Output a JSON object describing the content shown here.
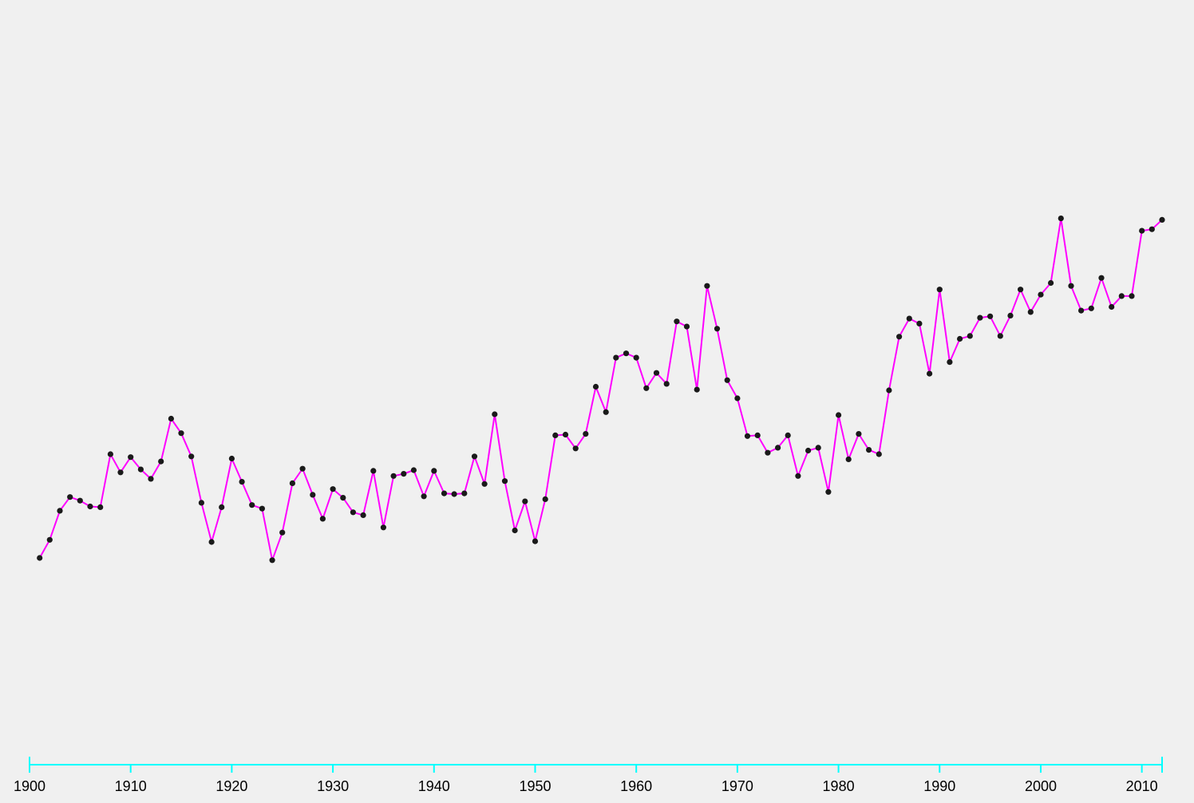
{
  "colors": {
    "background": "#f0f0f0",
    "line": "#ff00ff",
    "point": "#1a1a1a",
    "axis": "#00ffff"
  },
  "chart_data": {
    "type": "line",
    "title": "",
    "xlabel": "",
    "ylabel": "",
    "xlim": [
      1900,
      2012
    ],
    "ylim": [
      0,
      100
    ],
    "x_ticks": [
      1900,
      1910,
      1920,
      1930,
      1940,
      1950,
      1960,
      1970,
      1980,
      1990,
      2000,
      2010
    ],
    "y_axis_visible": false,
    "grid": false,
    "x": [
      1901,
      1902,
      1903,
      1904,
      1905,
      1906,
      1907,
      1908,
      1909,
      1910,
      1911,
      1912,
      1913,
      1914,
      1915,
      1916,
      1917,
      1918,
      1919,
      1920,
      1921,
      1922,
      1923,
      1924,
      1925,
      1926,
      1927,
      1928,
      1929,
      1930,
      1931,
      1932,
      1933,
      1934,
      1935,
      1936,
      1937,
      1938,
      1939,
      1940,
      1941,
      1942,
      1943,
      1944,
      1945,
      1946,
      1947,
      1948,
      1949,
      1950,
      1951,
      1952,
      1953,
      1954,
      1955,
      1956,
      1957,
      1958,
      1959,
      1960,
      1961,
      1962,
      1963,
      1964,
      1965,
      1966,
      1967,
      1968,
      1969,
      1970,
      1971,
      1972,
      1973,
      1974,
      1975,
      1976,
      1977,
      1978,
      1979,
      1980,
      1981,
      1982,
      1983,
      1984,
      1985,
      1986,
      1987,
      1988,
      1989,
      1990,
      1991,
      1992,
      1993,
      1994,
      1995,
      1996,
      1997,
      1998,
      1999,
      2000,
      2001,
      2002,
      2003,
      2004,
      2005,
      2006,
      2007,
      2008,
      2009,
      2010,
      2011,
      2012
    ],
    "series": [
      {
        "values": [
          28.6,
          31.1,
          35.1,
          37.0,
          36.5,
          35.7,
          35.6,
          42.9,
          40.4,
          42.5,
          40.8,
          39.5,
          41.9,
          47.8,
          45.8,
          42.6,
          36.2,
          30.8,
          35.6,
          42.3,
          39.1,
          35.9,
          35.4,
          28.3,
          32.1,
          38.9,
          40.9,
          37.3,
          34.0,
          38.1,
          36.9,
          34.9,
          34.5,
          40.6,
          32.8,
          39.9,
          40.2,
          40.7,
          37.1,
          40.6,
          37.5,
          37.4,
          37.5,
          42.6,
          38.8,
          48.4,
          39.2,
          32.4,
          36.4,
          30.9,
          36.7,
          45.5,
          45.6,
          43.7,
          45.7,
          52.2,
          48.7,
          56.2,
          56.8,
          56.2,
          52.0,
          54.1,
          52.6,
          61.2,
          60.5,
          51.8,
          66.1,
          60.2,
          53.1,
          50.6,
          45.4,
          45.5,
          43.1,
          43.8,
          45.5,
          39.9,
          43.4,
          43.8,
          37.7,
          48.3,
          42.2,
          45.7,
          43.5,
          42.9,
          51.7,
          59.1,
          61.6,
          60.9,
          54.0,
          65.6,
          55.6,
          58.8,
          59.2,
          61.7,
          61.9,
          59.2,
          62.0,
          65.6,
          62.5,
          64.9,
          66.5,
          75.4,
          66.1,
          62.7,
          63.0,
          67.2,
          63.2,
          64.7,
          64.7,
          73.7,
          73.9,
          75.2
        ]
      }
    ]
  }
}
